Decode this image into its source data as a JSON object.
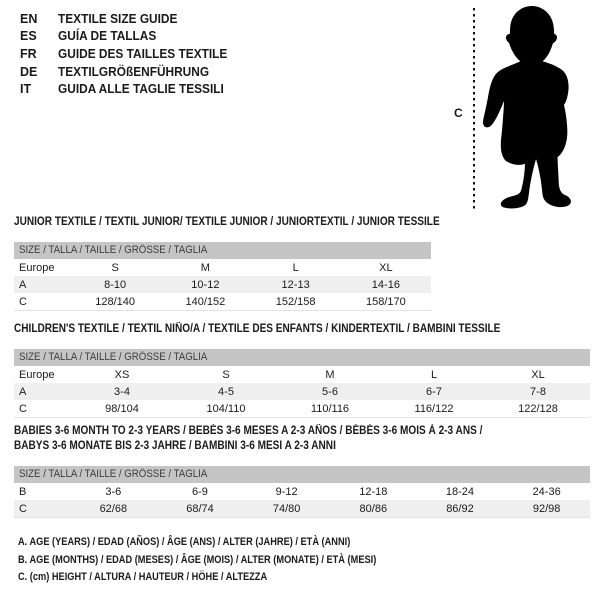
{
  "languages": [
    {
      "code": "EN",
      "label": "TEXTILE SIZE GUIDE"
    },
    {
      "code": "ES",
      "label": "GUÍA DE TALLAS"
    },
    {
      "code": "FR",
      "label": "GUIDE DES TAILLES TEXTILE"
    },
    {
      "code": "DE",
      "label": "TEXTILGRÖßENFÜHRUNG"
    },
    {
      "code": "IT",
      "label": "GUIDA ALLE TAGLIE TESSILI"
    }
  ],
  "figure": {
    "label": "C",
    "icon": "toddler-silhouette-icon",
    "silhouette_color": "#000000"
  },
  "tables": [
    {
      "title_lines": [
        "JUNIOR TEXTILE / TEXTIL JUNIOR/ TEXTILE JUNIOR / JUNIORTEXTIL / JUNIOR TESSILE"
      ],
      "size_header": "SIZE / TALLA / TAILLE / GRÖSSE / TAGLIA",
      "rows": [
        {
          "label": "Europe",
          "values": [
            "S",
            "M",
            "L",
            "XL"
          ],
          "shaded": false
        },
        {
          "label": "A",
          "values": [
            "8-10",
            "10-12",
            "12-13",
            "14-16"
          ],
          "shaded": true
        },
        {
          "label": "C",
          "values": [
            "128/140",
            "140/152",
            "152/158",
            "158/170"
          ],
          "shaded": false
        }
      ]
    },
    {
      "title_lines": [
        "CHILDREN'S TEXTILE / TEXTIL NIÑO/A / TEXTILE DES ENFANTS / KINDERTEXTIL / BAMBINI TESSILE"
      ],
      "size_header": "SIZE / TALLA / TAILLE / GRÖSSE / TAGLIA",
      "rows": [
        {
          "label": "Europe",
          "values": [
            "XS",
            "S",
            "M",
            "L",
            "XL"
          ],
          "shaded": false
        },
        {
          "label": "A",
          "values": [
            "3-4",
            "4-5",
            "5-6",
            "6-7",
            "7-8"
          ],
          "shaded": true
        },
        {
          "label": "C",
          "values": [
            "98/104",
            "104/110",
            "110/116",
            "116/122",
            "122/128"
          ],
          "shaded": false
        }
      ]
    },
    {
      "title_lines": [
        "BABIES 3-6 MONTH TO 2-3 YEARS / BEBÉS 3-6 MESES A 2-3 AÑOS / BÉBÉS 3-6 MOIS À 2-3 ANS /",
        "BABYS 3-6 MONATE BIS 2-3 JAHRE / BAMBINI 3-6 MESI A 2-3 ANNI"
      ],
      "size_header": "SIZE / TALLA / TAILLE / GRÖSSE / TAGLIA",
      "rows": [
        {
          "label": "B",
          "values": [
            "3-6",
            "6-9",
            "9-12",
            "12-18",
            "18-24",
            "24-36"
          ],
          "shaded": false
        },
        {
          "label": "C",
          "values": [
            "62/68",
            "68/74",
            "74/80",
            "80/86",
            "86/92",
            "92/98"
          ],
          "shaded": true
        }
      ]
    }
  ],
  "footnotes": [
    "A. AGE (YEARS) / EDAD (AÑOS) / ÂGE (ANS) / ALTER (JAHRE) / ETÀ (ANNI)",
    "B. AGE (MONTHS) / EDAD (MESES) / ÂGE (MOIS) / ALTER (MONATE) / ETÀ (MESI)",
    "C. (cm) HEIGHT / ALTURA / HAUTEUR / HÖHE / ALTEZZA"
  ],
  "colors": {
    "header_bar_bg": "#c5c5c5",
    "header_bar_text": "#3d3d3d",
    "shaded_row_bg": "#efefef",
    "text": "#1a1a1a",
    "silhouette": "#000000"
  }
}
